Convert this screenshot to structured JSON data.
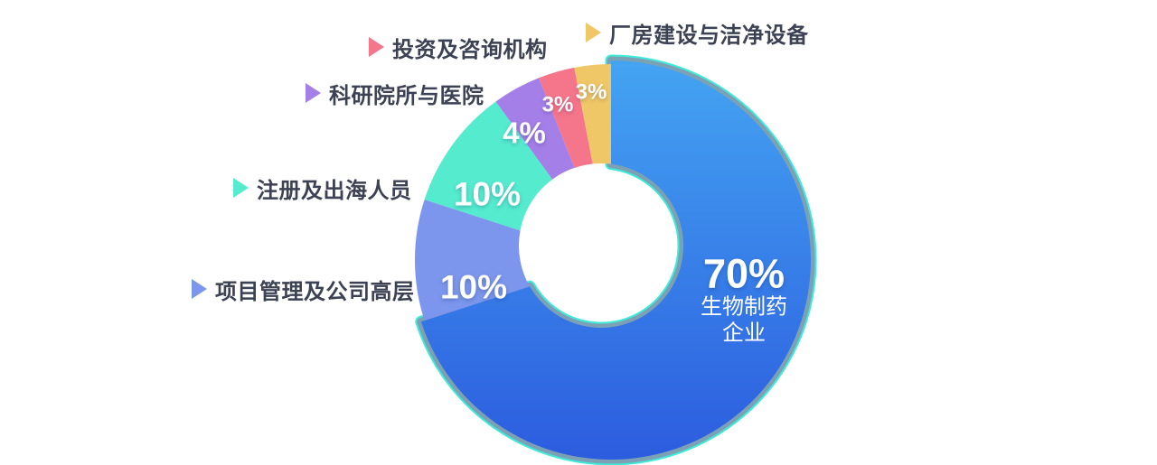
{
  "chart_data": {
    "type": "pie",
    "donut": true,
    "start_angle_deg": 0,
    "direction": "clockwise",
    "slices": [
      {
        "label": "生物制药企业",
        "value": 70,
        "pct_label": "70%",
        "sub_label_lines": [
          "生物制药",
          "企业"
        ],
        "color": "#44A4F2",
        "color_end": "#2C5CDF",
        "emphasized": true
      },
      {
        "label": "项目管理及公司高层",
        "value": 10,
        "pct_label": "10%",
        "color": "#7B96EC"
      },
      {
        "label": "注册及出海人员",
        "value": 10,
        "pct_label": "10%",
        "color": "#55EBCF"
      },
      {
        "label": "科研院所与医院",
        "value": 4,
        "pct_label": "4%",
        "color": "#A57FE8"
      },
      {
        "label": "投资及咨询机构",
        "value": 3,
        "pct_label": "3%",
        "color": "#F5758A"
      },
      {
        "label": "厂房建设与洁净设备",
        "value": 3,
        "pct_label": "3%",
        "color": "#EFC766"
      }
    ],
    "emphasis": {
      "outline_color": "#3EEBD9",
      "band_color": "#8596AE"
    }
  },
  "legend": {
    "items": [
      {
        "label": "厂房建设与洁净设备",
        "color": "#EFC766"
      },
      {
        "label": "投资及咨询机构",
        "color": "#F5758A"
      },
      {
        "label": "科研院所与医院",
        "color": "#A57FE8"
      },
      {
        "label": "注册及出海人员",
        "color": "#55EBCF"
      },
      {
        "label": "项目管理及公司高层",
        "color": "#7B96EC"
      }
    ]
  },
  "text_colors": {
    "legend_text": "#3C4254",
    "pct_text": "#FFFFFF"
  }
}
